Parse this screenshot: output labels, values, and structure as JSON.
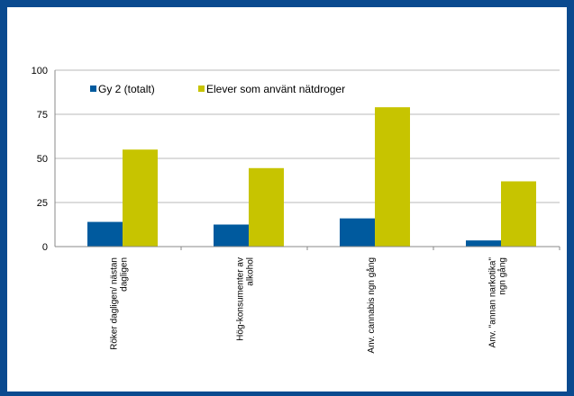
{
  "colors": {
    "frame": "#0a4a8f",
    "background": "#ffffff",
    "grid": "#b8b8b8",
    "series1": "#005a9e",
    "series2": "#c7c400"
  },
  "chart_data": {
    "type": "bar",
    "title": "",
    "xlabel": "",
    "ylabel": "",
    "ylim": [
      0,
      100
    ],
    "yticks": [
      0,
      25,
      50,
      75,
      100
    ],
    "grid": true,
    "legend_position": "top-left",
    "categories": [
      "Röker dagligen/ nästan dagligen",
      "Hög-konsumenter av alkohol",
      "Anv. cannabis ngn gång",
      "Anv. \"annan narkotika\" ngn gång"
    ],
    "series": [
      {
        "name": "Gy 2 (totalt)",
        "color": "#005a9e",
        "values": [
          14,
          12.5,
          16,
          3.5
        ]
      },
      {
        "name": "Elever som använt nätdroger",
        "color": "#c7c400",
        "values": [
          55,
          44.5,
          79,
          37
        ]
      }
    ]
  }
}
